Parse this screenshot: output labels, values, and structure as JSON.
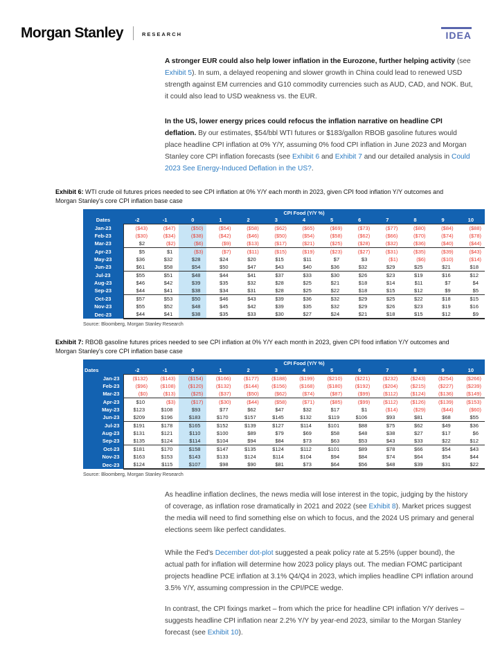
{
  "header": {
    "brand": "Morgan Stanley",
    "division": "RESEARCH",
    "logo_right": "IDEA"
  },
  "colors": {
    "table_header_blue": "#1362B1",
    "highlight_blue": "#C8E5F6",
    "negative_red": "#E8382C",
    "link_blue": "#2B7BC2",
    "idea_blue": "#5965AD"
  },
  "intro_paragraphs": [
    {
      "segments": [
        {
          "t": "A stronger EUR could also help lower inflation in the Eurozone, further helping activity",
          "s": "bold"
        },
        {
          "t": " (see ",
          "s": "n"
        },
        {
          "t": "Exhibit 5",
          "s": "link",
          "name": "exhibit-5-link"
        },
        {
          "t": "). In sum, a delayed reopening and slower growth in China could lead to renewed USD strength against EM currencies and G10 commodity currencies such as AUD, CAD, and NOK. But, it could also lead to USD weakness vs. the EUR.",
          "s": "n"
        }
      ]
    },
    {
      "segments": [
        {
          "t": "In the US, lower energy prices could refocus the inflation narrative on headline CPI deflation.",
          "s": "bold"
        },
        {
          "t": " By our estimates, $54/bbl WTI futures or $183/gallon RBOB gasoline futures would place headline CPI inflation at 0% Y/Y, assuming 0% food CPI inflation in June 2023 and Morgan Stanley core CPI inflation forecasts (see ",
          "s": "n"
        },
        {
          "t": "Exhibit 6",
          "s": "link",
          "name": "exhibit-6-link"
        },
        {
          "t": " and ",
          "s": "n"
        },
        {
          "t": "Exhibit 7",
          "s": "link",
          "name": "exhibit-7-link"
        },
        {
          "t": " and our detailed analysis in ",
          "s": "n"
        },
        {
          "t": "Could 2023 See Energy-Induced Deflation in the US?",
          "s": "link",
          "name": "deflation-report-link"
        },
        {
          "t": ".",
          "s": "n"
        }
      ]
    }
  ],
  "exhibits": [
    {
      "label": "Exhibit 6:",
      "caption": "WTI crude oil futures prices needed to see CPI inflation at 0% Y/Y each month in 2023, given CPI food inflation Y/Y outcomes and Morgan Stanley's core CPI inflation base case",
      "source": "Source: Bloomberg, Morgan Stanley Research",
      "table": {
        "group_header": "CPI Food (Y/Y %)",
        "row_header": "Dates",
        "columns": [
          "-2",
          "-1",
          "0",
          "1",
          "2",
          "3",
          "4",
          "5",
          "6",
          "7",
          "8",
          "9",
          "10"
        ],
        "highlight_column": "0",
        "quarter_dividers_after": [
          "Mar-23",
          "Jun-23",
          "Sep-23"
        ],
        "rows": [
          {
            "date": "Jan-23",
            "values": [
              "($43)",
              "($47)",
              "($50)",
              "($54)",
              "($58)",
              "($62)",
              "($65)",
              "($69)",
              "($73)",
              "($77)",
              "($80)",
              "($84)",
              "($88)"
            ]
          },
          {
            "date": "Feb-23",
            "values": [
              "($30)",
              "($34)",
              "($38)",
              "($42)",
              "($46)",
              "($50)",
              "($54)",
              "($58)",
              "($62)",
              "($66)",
              "($70)",
              "($74)",
              "($78)"
            ]
          },
          {
            "date": "Mar-23",
            "values": [
              "$2",
              "($2)",
              "($6)",
              "($9)",
              "($13)",
              "($17)",
              "($21)",
              "($25)",
              "($28)",
              "($32)",
              "($36)",
              "($40)",
              "($44)"
            ]
          },
          {
            "date": "Apr-23",
            "values": [
              "$5",
              "$1",
              "($3)",
              "($7)",
              "($11)",
              "($15)",
              "($19)",
              "($23)",
              "($27)",
              "($31)",
              "($35)",
              "($39)",
              "($43)"
            ]
          },
          {
            "date": "May-23",
            "values": [
              "$36",
              "$32",
              "$28",
              "$24",
              "$20",
              "$15",
              "$11",
              "$7",
              "$3",
              "($1)",
              "($6)",
              "($10)",
              "($14)"
            ]
          },
          {
            "date": "Jun-23",
            "values": [
              "$61",
              "$58",
              "$54",
              "$50",
              "$47",
              "$43",
              "$40",
              "$36",
              "$32",
              "$29",
              "$25",
              "$21",
              "$18"
            ]
          },
          {
            "date": "Jul-23",
            "values": [
              "$55",
              "$51",
              "$48",
              "$44",
              "$41",
              "$37",
              "$33",
              "$30",
              "$26",
              "$23",
              "$19",
              "$16",
              "$12"
            ]
          },
          {
            "date": "Aug-23",
            "values": [
              "$46",
              "$42",
              "$39",
              "$35",
              "$32",
              "$28",
              "$25",
              "$21",
              "$18",
              "$14",
              "$11",
              "$7",
              "$4"
            ]
          },
          {
            "date": "Sep-23",
            "values": [
              "$44",
              "$41",
              "$38",
              "$34",
              "$31",
              "$28",
              "$25",
              "$22",
              "$18",
              "$15",
              "$12",
              "$9",
              "$5"
            ]
          },
          {
            "date": "Oct-23",
            "values": [
              "$57",
              "$53",
              "$50",
              "$46",
              "$43",
              "$39",
              "$36",
              "$32",
              "$29",
              "$25",
              "$22",
              "$18",
              "$15"
            ]
          },
          {
            "date": "Nov-23",
            "values": [
              "$55",
              "$52",
              "$48",
              "$45",
              "$42",
              "$39",
              "$35",
              "$32",
              "$29",
              "$26",
              "$23",
              "$19",
              "$16"
            ]
          },
          {
            "date": "Dec-23",
            "values": [
              "$44",
              "$41",
              "$38",
              "$35",
              "$33",
              "$30",
              "$27",
              "$24",
              "$21",
              "$18",
              "$15",
              "$12",
              "$9"
            ]
          }
        ]
      }
    },
    {
      "label": "Exhibit 7:",
      "caption": "RBOB gasoline futures prices needed to see CPI inflation at 0% Y/Y each month in 2023, given CPI food inflation Y/Y outcomes and Morgan Stanley's core CPI inflation base case",
      "source": "Source: Bloomberg, Morgan Stanley Research",
      "table": {
        "group_header": "CPI Food (Y/Y %)",
        "row_header": "Dates",
        "columns": [
          "-2",
          "-1",
          "0",
          "1",
          "2",
          "3",
          "4",
          "5",
          "6",
          "7",
          "8",
          "9",
          "10"
        ],
        "highlight_column": "0",
        "quarter_dividers_after": [
          "Mar-23",
          "Jun-23",
          "Sep-23"
        ],
        "rows": [
          {
            "date": "Jan-23",
            "values": [
              "($132)",
              "($143)",
              "($154)",
              "($166)",
              "($177)",
              "($188)",
              "($199)",
              "($210)",
              "($221)",
              "($232)",
              "($243)",
              "($254)",
              "($266)"
            ]
          },
          {
            "date": "Feb-23",
            "values": [
              "($96)",
              "($108)",
              "($120)",
              "($132)",
              "($144)",
              "($156)",
              "($168)",
              "($180)",
              "($192)",
              "($204)",
              "($215)",
              "($227)",
              "($239)"
            ]
          },
          {
            "date": "Mar-23",
            "values": [
              "($0)",
              "($13)",
              "($25)",
              "($37)",
              "($50)",
              "($62)",
              "($74)",
              "($87)",
              "($99)",
              "($112)",
              "($124)",
              "($136)",
              "($149)"
            ]
          },
          {
            "date": "Apr-23",
            "values": [
              "$10",
              "($3)",
              "($17)",
              "($30)",
              "($44)",
              "($58)",
              "($71)",
              "($85)",
              "($99)",
              "($112)",
              "($126)",
              "($139)",
              "($153)"
            ]
          },
          {
            "date": "May-23",
            "values": [
              "$123",
              "$108",
              "$93",
              "$77",
              "$62",
              "$47",
              "$32",
              "$17",
              "$1",
              "($14)",
              "($29)",
              "($44)",
              "($60)"
            ]
          },
          {
            "date": "Jun-23",
            "values": [
              "$209",
              "$196",
              "$183",
              "$170",
              "$157",
              "$145",
              "$132",
              "$119",
              "$106",
              "$93",
              "$81",
              "$68",
              "$55"
            ]
          },
          {
            "date": "Jul-23",
            "values": [
              "$191",
              "$178",
              "$165",
              "$152",
              "$139",
              "$127",
              "$114",
              "$101",
              "$88",
              "$75",
              "$62",
              "$49",
              "$36"
            ]
          },
          {
            "date": "Aug-23",
            "values": [
              "$131",
              "$121",
              "$110",
              "$100",
              "$89",
              "$79",
              "$69",
              "$58",
              "$48",
              "$38",
              "$27",
              "$17",
              "$6"
            ]
          },
          {
            "date": "Sep-23",
            "values": [
              "$135",
              "$124",
              "$114",
              "$104",
              "$94",
              "$84",
              "$73",
              "$63",
              "$53",
              "$43",
              "$33",
              "$22",
              "$12"
            ]
          },
          {
            "date": "Oct-23",
            "values": [
              "$181",
              "$170",
              "$158",
              "$147",
              "$135",
              "$124",
              "$112",
              "$101",
              "$89",
              "$78",
              "$66",
              "$54",
              "$43"
            ]
          },
          {
            "date": "Nov-23",
            "values": [
              "$163",
              "$153",
              "$143",
              "$133",
              "$124",
              "$114",
              "$104",
              "$94",
              "$84",
              "$74",
              "$64",
              "$54",
              "$44"
            ]
          },
          {
            "date": "Dec-23",
            "values": [
              "$124",
              "$115",
              "$107",
              "$98",
              "$90",
              "$81",
              "$73",
              "$64",
              "$56",
              "$48",
              "$39",
              "$31",
              "$22"
            ]
          }
        ]
      }
    }
  ],
  "body_paragraphs": [
    {
      "segments": [
        {
          "t": "As headline inflation declines, the news media will lose interest in the topic, judging by the history of coverage, as inflation rose dramatically in 2021 and 2022 (see ",
          "s": "n"
        },
        {
          "t": "Exhibit 8",
          "s": "link",
          "name": "exhibit-8-link"
        },
        {
          "t": "). Market prices suggest the media will need to find something else on which to focus, and the 2024 US primary and general elections seem like perfect candidates.",
          "s": "n"
        }
      ]
    },
    {
      "segments": [
        {
          "t": "While the Fed's ",
          "s": "n"
        },
        {
          "t": "December dot-plot",
          "s": "link",
          "name": "december-dot-plot-link"
        },
        {
          "t": " suggested a peak policy rate at 5.25% (upper bound), the actual path for inflation will determine how 2023 policy plays out. The median FOMC participant projects headline PCE inflation at 3.1% Q4/Q4 in 2023, which implies headline CPI inflation around 3.5% Y/Y, assuming compression in the CPI/PCE wedge.",
          "s": "n"
        }
      ]
    },
    {
      "segments": [
        {
          "t": "In contrast, the CPI fixings market – from which the price for headline CPI inflation Y/Y derives – suggests headline CPI inflation near 2.2% Y/Y by year-end 2023, similar to the Morgan Stanley forecast (see ",
          "s": "n"
        },
        {
          "t": "Exhibit 10",
          "s": "link",
          "name": "exhibit-10-link"
        },
        {
          "t": ").",
          "s": "n"
        }
      ]
    }
  ]
}
